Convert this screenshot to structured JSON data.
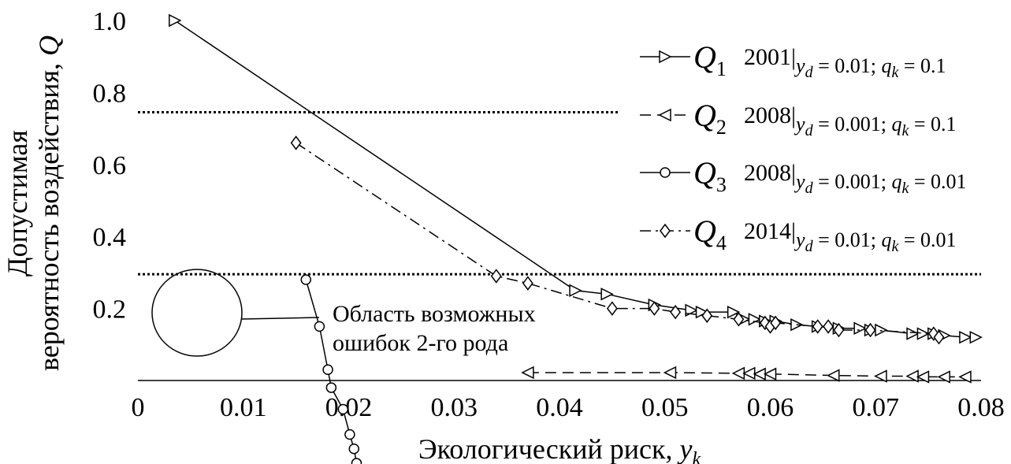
{
  "chart_data": {
    "type": "line",
    "xlabel_text": "Экологический риск, ",
    "xlabel_var": "y",
    "xlabel_sub": "k",
    "ylabel_line1": "Допустимая",
    "ylabel_line2_text": "вероятность воздействия, ",
    "ylabel_line2_var": "Q",
    "xlim": [
      0,
      0.08
    ],
    "ylim": [
      0,
      1.0
    ],
    "x_ticks": [
      0,
      0.01,
      0.02,
      0.03,
      0.04,
      0.05,
      0.06,
      0.07,
      0.08
    ],
    "x_tick_labels": [
      "0",
      "0.01",
      "0.02",
      "0.03",
      "0.04",
      "0.05",
      "0.06",
      "0.07",
      "0.08"
    ],
    "y_ticks": [
      0.2,
      0.4,
      0.6,
      0.8,
      1.0
    ],
    "y_tick_labels": [
      "0.2",
      "0.4",
      "0.6",
      "0.8",
      "1.0"
    ],
    "threshold_lines": [
      0.745,
      0.295
    ],
    "grid": false,
    "legend_position": "right",
    "series": [
      {
        "symbol": "Q",
        "sub": "1",
        "year": "2001",
        "cond_yd": "0.01",
        "cond_qk": "0.1",
        "line_style": "solid",
        "marker": "triangle-right",
        "x": [
          0.0035,
          0.0415,
          0.0445,
          0.049,
          0.0525,
          0.0535,
          0.0565,
          0.0575,
          0.0585,
          0.0595,
          0.0605,
          0.0625,
          0.0645,
          0.0665,
          0.0685,
          0.0695,
          0.0705,
          0.0735,
          0.0745,
          0.0755,
          0.0765,
          0.0785,
          0.0795
        ],
        "y": [
          1.0,
          0.25,
          0.24,
          0.21,
          0.195,
          0.19,
          0.19,
          0.17,
          0.17,
          0.165,
          0.165,
          0.155,
          0.15,
          0.145,
          0.145,
          0.14,
          0.14,
          0.13,
          0.13,
          0.13,
          0.125,
          0.12,
          0.12
        ]
      },
      {
        "symbol": "Q",
        "sub": "2",
        "year": "2008",
        "cond_yd": "0.001",
        "cond_qk": "0.1",
        "line_style": "dashed",
        "marker": "triangle-left",
        "x": [
          0.037,
          0.0505,
          0.057,
          0.058,
          0.059,
          0.06,
          0.066,
          0.0705,
          0.0735,
          0.0745,
          0.0765,
          0.0785
        ],
        "y": [
          0.022,
          0.022,
          0.02,
          0.02,
          0.018,
          0.018,
          0.014,
          0.012,
          0.012,
          0.01,
          0.01,
          0.01
        ]
      },
      {
        "symbol": "Q",
        "sub": "3",
        "year": "2008",
        "cond_yd": "0.001",
        "cond_qk": "0.01",
        "line_style": "solid",
        "marker": "circle",
        "inset_points": [
          [
            0.218,
            0.14
          ],
          [
            0.234,
            0.27
          ],
          [
            0.244,
            0.39
          ],
          [
            0.248,
            0.44
          ],
          [
            0.262,
            0.5
          ],
          [
            0.27,
            0.57
          ],
          [
            0.275,
            0.61
          ],
          [
            0.278,
            0.65
          ]
        ]
      },
      {
        "symbol": "Q",
        "sub": "4",
        "year": "2014",
        "cond_yd": "0.01",
        "cond_qk": "0.01",
        "line_style": "dashdot",
        "marker": "diamond",
        "x": [
          0.015,
          0.034,
          0.037,
          0.045,
          0.049,
          0.051,
          0.054,
          0.057,
          0.0595,
          0.06,
          0.0605,
          0.0645,
          0.0655,
          0.0665,
          0.0695,
          0.0755,
          0.076
        ],
        "y": [
          0.66,
          0.29,
          0.27,
          0.2,
          0.2,
          0.19,
          0.18,
          0.17,
          0.16,
          0.15,
          0.16,
          0.15,
          0.15,
          0.14,
          0.14,
          0.13,
          0.12
        ]
      }
    ],
    "annotation": {
      "line1": "Область возможных",
      "line2": "ошибок 2-го рода"
    }
  }
}
